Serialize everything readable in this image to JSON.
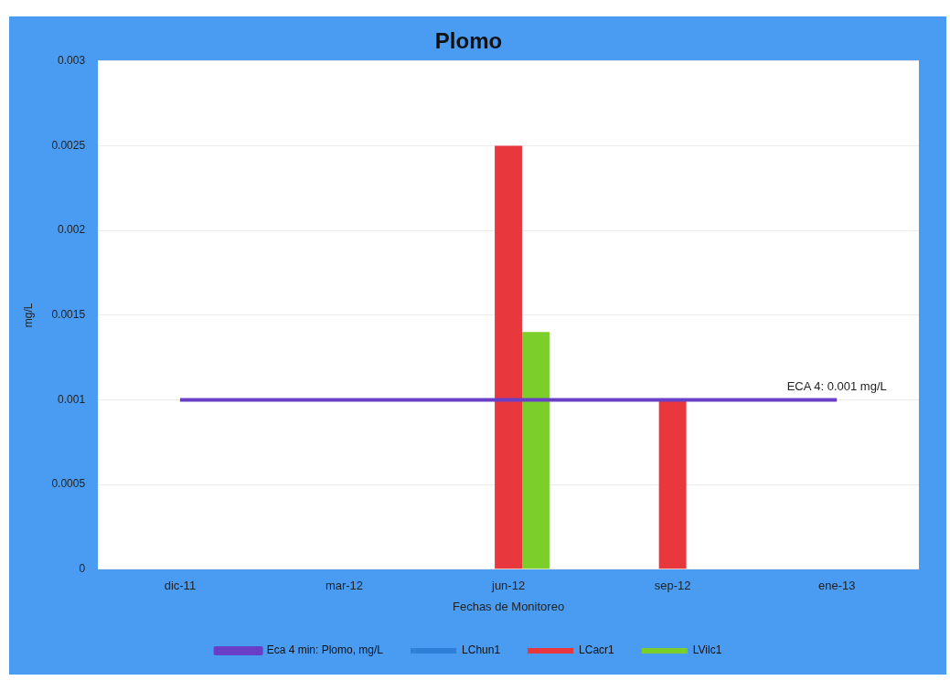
{
  "chart_data": {
    "type": "bar",
    "title": "Plomo",
    "xlabel": "Fechas de Monitoreo",
    "ylabel": "mg/L",
    "categories": [
      "dic-11",
      "mar-12",
      "jun-12",
      "sep-12",
      "ene-13"
    ],
    "series": [
      {
        "name": "LChun1",
        "color": "#2f7fd8",
        "values": [
          0,
          0,
          0,
          0,
          0
        ]
      },
      {
        "name": "LCacr1",
        "color": "#e8383d",
        "values": [
          0,
          0,
          0.0025,
          0.001,
          0
        ]
      },
      {
        "name": "LVilc1",
        "color": "#7ccf2a",
        "values": [
          0,
          0,
          0.0014,
          0,
          0
        ]
      },
      {
        "name": "Eca 4 min: Plomo, mg/L",
        "type": "line",
        "color": "#6a3fc8",
        "values": [
          0.001,
          0.001,
          0.001,
          0.001,
          0.001
        ]
      }
    ],
    "ylim": [
      0,
      0.003
    ],
    "yticks": [
      0,
      0.0005,
      0.001,
      0.0015,
      0.002,
      0.0025,
      0.003
    ],
    "grid": "y",
    "legend": "bottom",
    "marker": "none",
    "annotations": [
      {
        "text": "ECA 4: 0.001 mg/L",
        "x": "ene-13",
        "y": 0.001
      }
    ]
  }
}
